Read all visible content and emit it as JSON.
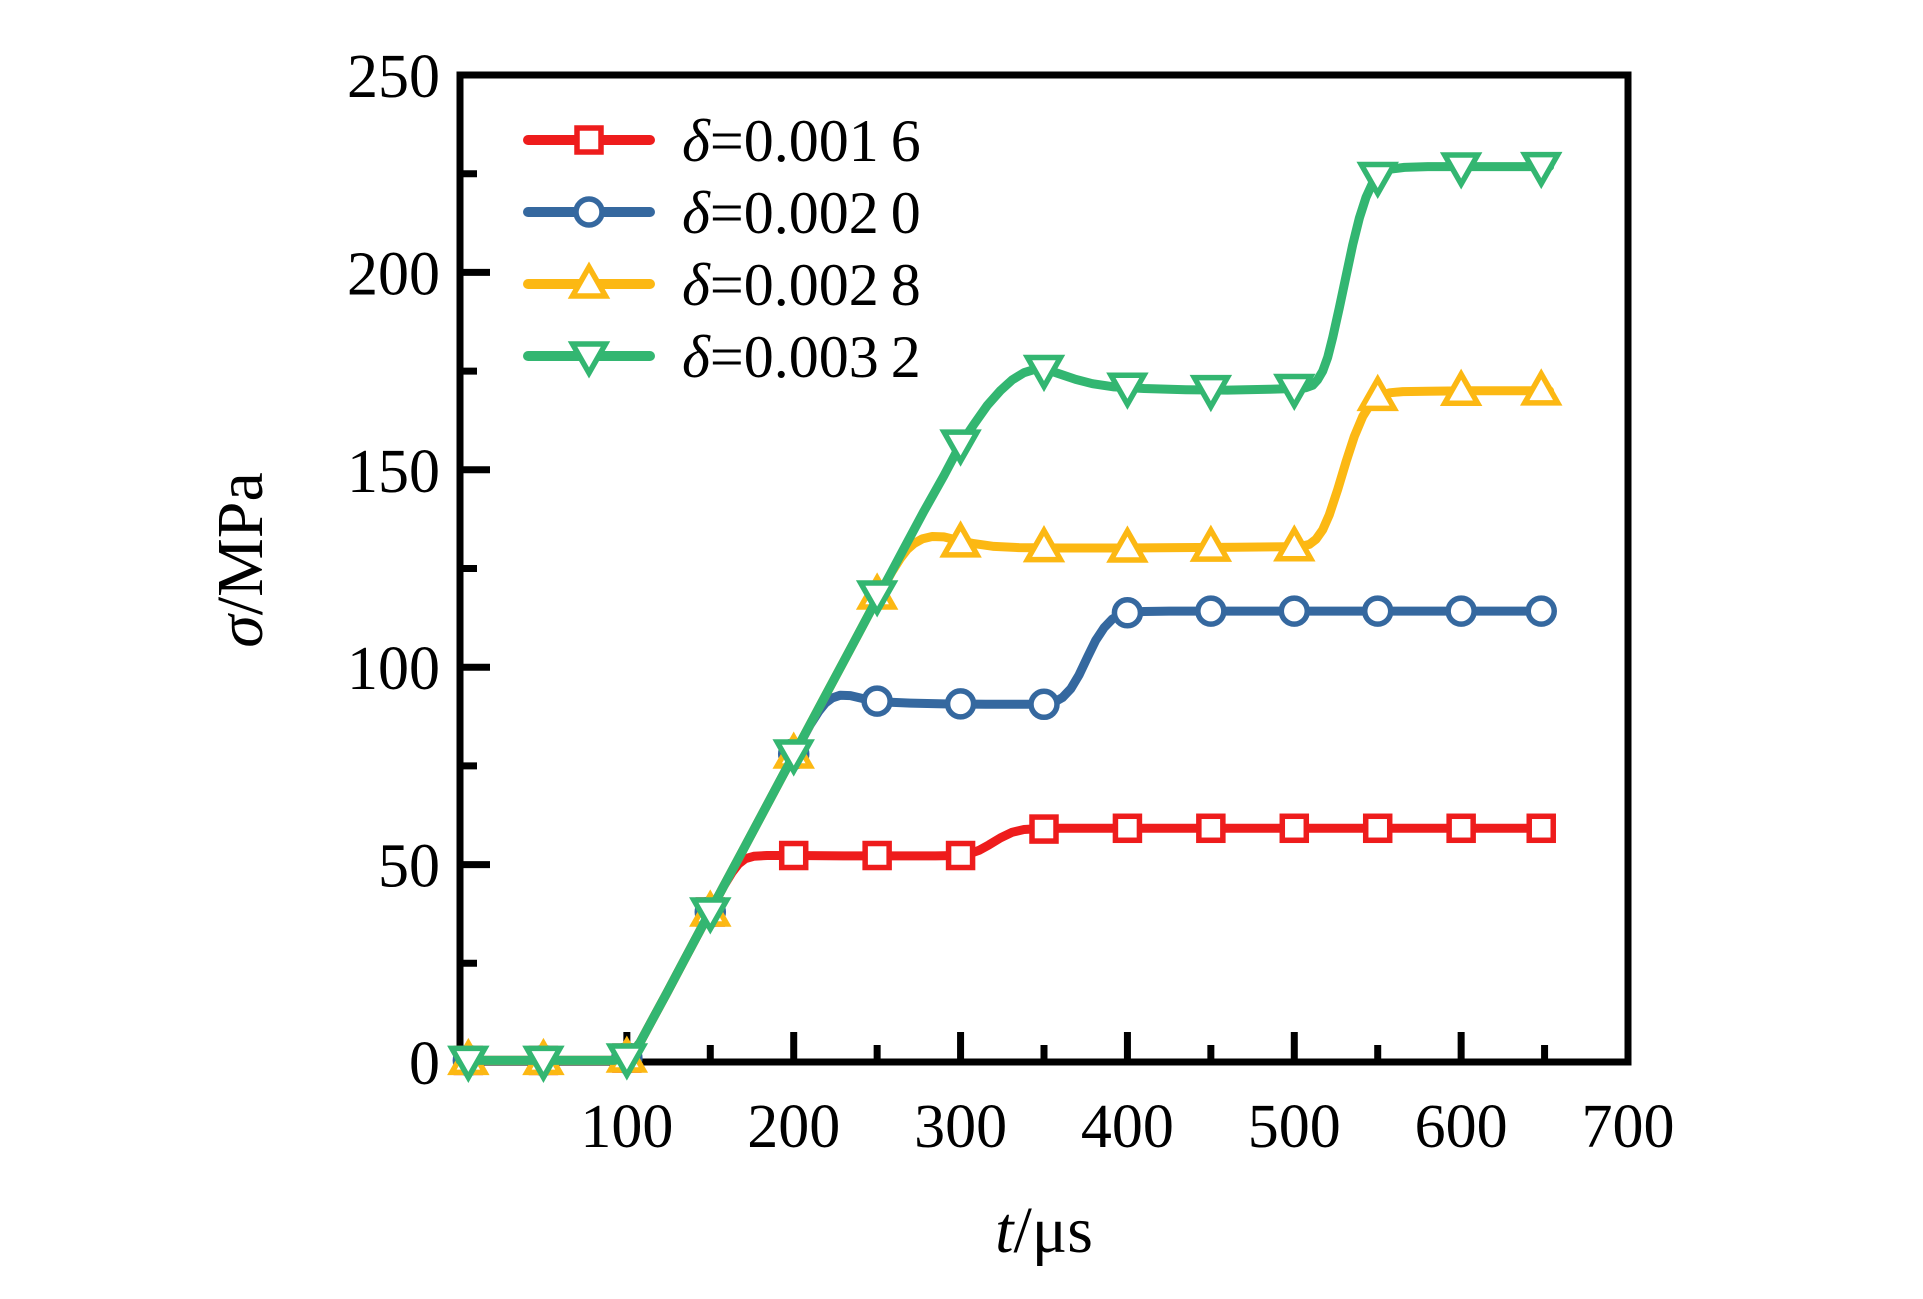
{
  "figure": {
    "background": "#ffffff",
    "axis_color": "#000000"
  },
  "chart_data": {
    "type": "line",
    "title": "",
    "xlabel": {
      "italic": "t",
      "rest": "/μs"
    },
    "ylabel": {
      "italic": "σ",
      "rest": "/MPa"
    },
    "xlim": [
      0,
      700
    ],
    "ylim": [
      0,
      250
    ],
    "grid": false,
    "legend_position": "top-left-inside",
    "x_major_ticks": [
      100,
      200,
      300,
      400,
      500,
      600,
      700
    ],
    "x_minor_ticks": [
      50,
      150,
      250,
      350,
      450,
      550,
      650
    ],
    "y_major_ticks": [
      0,
      50,
      100,
      150,
      200,
      250
    ],
    "y_minor_ticks": [
      25,
      75,
      125,
      175,
      225
    ],
    "marker_t": [
      5,
      50,
      100,
      150,
      200,
      250,
      300,
      350,
      400,
      450,
      500,
      550,
      600,
      648
    ],
    "series": [
      {
        "name": "delta-0.0016",
        "legend_sym": "δ",
        "legend_rest": "=0.001 6",
        "color": "#ee1c1c",
        "marker": "square",
        "line": [
          [
            0,
            0.4
          ],
          [
            40,
            0.4
          ],
          [
            80,
            0.4
          ],
          [
            92,
            0.4
          ],
          [
            98,
            0.8
          ],
          [
            103,
            2.2
          ],
          [
            108,
            5
          ],
          [
            115,
            10.5
          ],
          [
            124,
            17.5
          ],
          [
            134,
            25.5
          ],
          [
            146,
            35
          ],
          [
            158,
            44.5
          ],
          [
            163,
            48
          ],
          [
            167,
            50.2
          ],
          [
            171,
            51.5
          ],
          [
            176,
            52.1
          ],
          [
            184,
            52.3
          ],
          [
            200,
            52.3
          ],
          [
            230,
            52.2
          ],
          [
            260,
            52.2
          ],
          [
            285,
            52.2
          ],
          [
            298,
            52.3
          ],
          [
            305,
            52.7
          ],
          [
            311,
            53.6
          ],
          [
            317,
            55
          ],
          [
            324,
            56.8
          ],
          [
            331,
            58.2
          ],
          [
            338,
            58.9
          ],
          [
            346,
            59.1
          ],
          [
            360,
            59.2
          ],
          [
            400,
            59.2
          ],
          [
            460,
            59.2
          ],
          [
            520,
            59.2
          ],
          [
            590,
            59.2
          ],
          [
            653,
            59.2
          ]
        ],
        "marker_v": [
          0.4,
          0.4,
          1,
          38,
          52.3,
          52.3,
          52.3,
          59.0,
          59.2,
          59.2,
          59.2,
          59.2,
          59.2,
          59.2
        ]
      },
      {
        "name": "delta-0.0020",
        "legend_sym": "δ",
        "legend_rest": "=0.002 0",
        "color": "#35689f",
        "marker": "circle",
        "line": [
          [
            0,
            0.4
          ],
          [
            40,
            0.4
          ],
          [
            80,
            0.4
          ],
          [
            92,
            0.4
          ],
          [
            98,
            0.8
          ],
          [
            103,
            2.2
          ],
          [
            108,
            5
          ],
          [
            115,
            10.5
          ],
          [
            124,
            17.5
          ],
          [
            134,
            25.5
          ],
          [
            146,
            35
          ],
          [
            158,
            44.5
          ],
          [
            170,
            54
          ],
          [
            182,
            63.5
          ],
          [
            194,
            73
          ],
          [
            203,
            80
          ],
          [
            210,
            85.5
          ],
          [
            215,
            88.8
          ],
          [
            219,
            90.9
          ],
          [
            223,
            92.2
          ],
          [
            228,
            92.9
          ],
          [
            234,
            92.8
          ],
          [
            241,
            92.1
          ],
          [
            249,
            91.5
          ],
          [
            258,
            91.1
          ],
          [
            270,
            90.9
          ],
          [
            290,
            90.7
          ],
          [
            315,
            90.6
          ],
          [
            340,
            90.6
          ],
          [
            350,
            90.7
          ],
          [
            356,
            91.1
          ],
          [
            361,
            92.3
          ],
          [
            366,
            94.5
          ],
          [
            371,
            98
          ],
          [
            376,
            102.5
          ],
          [
            381,
            106.8
          ],
          [
            386,
            110
          ],
          [
            391,
            112.2
          ],
          [
            396,
            113.4
          ],
          [
            402,
            113.9
          ],
          [
            410,
            114.1
          ],
          [
            425,
            114.2
          ],
          [
            455,
            114.2
          ],
          [
            490,
            114.2
          ],
          [
            530,
            114.2
          ],
          [
            570,
            114.2
          ],
          [
            610,
            114.2
          ],
          [
            653,
            114.2
          ]
        ],
        "marker_v": [
          0.4,
          0.4,
          1,
          38,
          78,
          91.4,
          90.7,
          90.6,
          113.8,
          114.2,
          114.2,
          114.2,
          114.2,
          114.2
        ]
      },
      {
        "name": "delta-0.0028",
        "legend_sym": "δ",
        "legend_rest": "=0.002 8",
        "color": "#fcb813",
        "marker": "triangle-up",
        "line": [
          [
            0,
            0.4
          ],
          [
            40,
            0.4
          ],
          [
            80,
            0.4
          ],
          [
            92,
            0.4
          ],
          [
            98,
            0.8
          ],
          [
            103,
            2.2
          ],
          [
            108,
            5
          ],
          [
            115,
            10.5
          ],
          [
            124,
            17.5
          ],
          [
            134,
            25.5
          ],
          [
            146,
            35
          ],
          [
            158,
            44.5
          ],
          [
            170,
            54
          ],
          [
            182,
            63.5
          ],
          [
            194,
            73
          ],
          [
            206,
            82.5
          ],
          [
            218,
            92
          ],
          [
            230,
            101.5
          ],
          [
            242,
            111
          ],
          [
            252,
            119
          ],
          [
            259,
            124.3
          ],
          [
            264,
            127.6
          ],
          [
            268,
            129.8
          ],
          [
            272,
            131.3
          ],
          [
            277,
            132.5
          ],
          [
            283,
            133.1
          ],
          [
            290,
            133.0
          ],
          [
            298,
            132.2
          ],
          [
            308,
            131.3
          ],
          [
            320,
            130.6
          ],
          [
            335,
            130.3
          ],
          [
            360,
            130.2
          ],
          [
            395,
            130.2
          ],
          [
            430,
            130.3
          ],
          [
            465,
            130.4
          ],
          [
            495,
            130.5
          ],
          [
            504,
            130.6
          ],
          [
            509,
            131.1
          ],
          [
            513,
            132.4
          ],
          [
            517,
            134.8
          ],
          [
            521,
            138.6
          ],
          [
            526,
            145
          ],
          [
            531,
            152
          ],
          [
            536,
            158.5
          ],
          [
            541,
            163.5
          ],
          [
            546,
            166.9
          ],
          [
            551,
            168.6
          ],
          [
            557,
            169.5
          ],
          [
            565,
            169.8
          ],
          [
            580,
            169.9
          ],
          [
            605,
            170
          ],
          [
            635,
            170
          ],
          [
            653,
            170
          ]
        ],
        "marker_v": [
          0.4,
          0.4,
          1,
          38,
          78,
          118.3,
          131.5,
          130.3,
          130.2,
          130.4,
          130.5,
          168.6,
          169.9,
          170.0
        ]
      },
      {
        "name": "delta-0.0032",
        "legend_sym": "δ",
        "legend_rest": "=0.003 2",
        "color": "#33b671",
        "marker": "triangle-down",
        "line": [
          [
            0,
            0.4
          ],
          [
            40,
            0.4
          ],
          [
            80,
            0.4
          ],
          [
            92,
            0.4
          ],
          [
            98,
            0.8
          ],
          [
            103,
            2.2
          ],
          [
            108,
            5
          ],
          [
            115,
            10.5
          ],
          [
            124,
            17.5
          ],
          [
            134,
            25.5
          ],
          [
            146,
            35
          ],
          [
            158,
            44.5
          ],
          [
            170,
            54
          ],
          [
            182,
            63.5
          ],
          [
            194,
            73
          ],
          [
            206,
            82.5
          ],
          [
            218,
            92
          ],
          [
            230,
            101.5
          ],
          [
            242,
            111
          ],
          [
            254,
            120.5
          ],
          [
            266,
            130
          ],
          [
            278,
            139.5
          ],
          [
            290,
            148.5
          ],
          [
            300,
            156.5
          ],
          [
            308,
            161.5
          ],
          [
            316,
            166.3
          ],
          [
            324,
            170.1
          ],
          [
            331,
            172.8
          ],
          [
            338,
            174.6
          ],
          [
            345,
            175.5
          ],
          [
            352,
            175.3
          ],
          [
            360,
            174.2
          ],
          [
            369,
            172.9
          ],
          [
            379,
            171.8
          ],
          [
            392,
            171
          ],
          [
            410,
            170.6
          ],
          [
            435,
            170.3
          ],
          [
            460,
            170.2
          ],
          [
            485,
            170.4
          ],
          [
            500,
            170.6
          ],
          [
            507,
            170.8
          ],
          [
            511,
            171.4
          ],
          [
            514,
            172.8
          ],
          [
            517,
            175
          ],
          [
            520,
            178.5
          ],
          [
            523,
            183.5
          ],
          [
            527,
            191
          ],
          [
            531,
            199
          ],
          [
            535,
            207
          ],
          [
            539,
            213.8
          ],
          [
            543,
            219
          ],
          [
            547,
            222.7
          ],
          [
            552,
            225
          ],
          [
            558,
            226.2
          ],
          [
            566,
            226.6
          ],
          [
            580,
            226.8
          ],
          [
            610,
            226.8
          ],
          [
            640,
            226.8
          ],
          [
            653,
            226.8
          ]
        ],
        "marker_v": [
          0.4,
          0.4,
          1,
          38,
          78,
          118.3,
          156.5,
          175.4,
          170.9,
          170.3,
          170.6,
          224.3,
          226.7,
          226.8
        ]
      }
    ]
  }
}
